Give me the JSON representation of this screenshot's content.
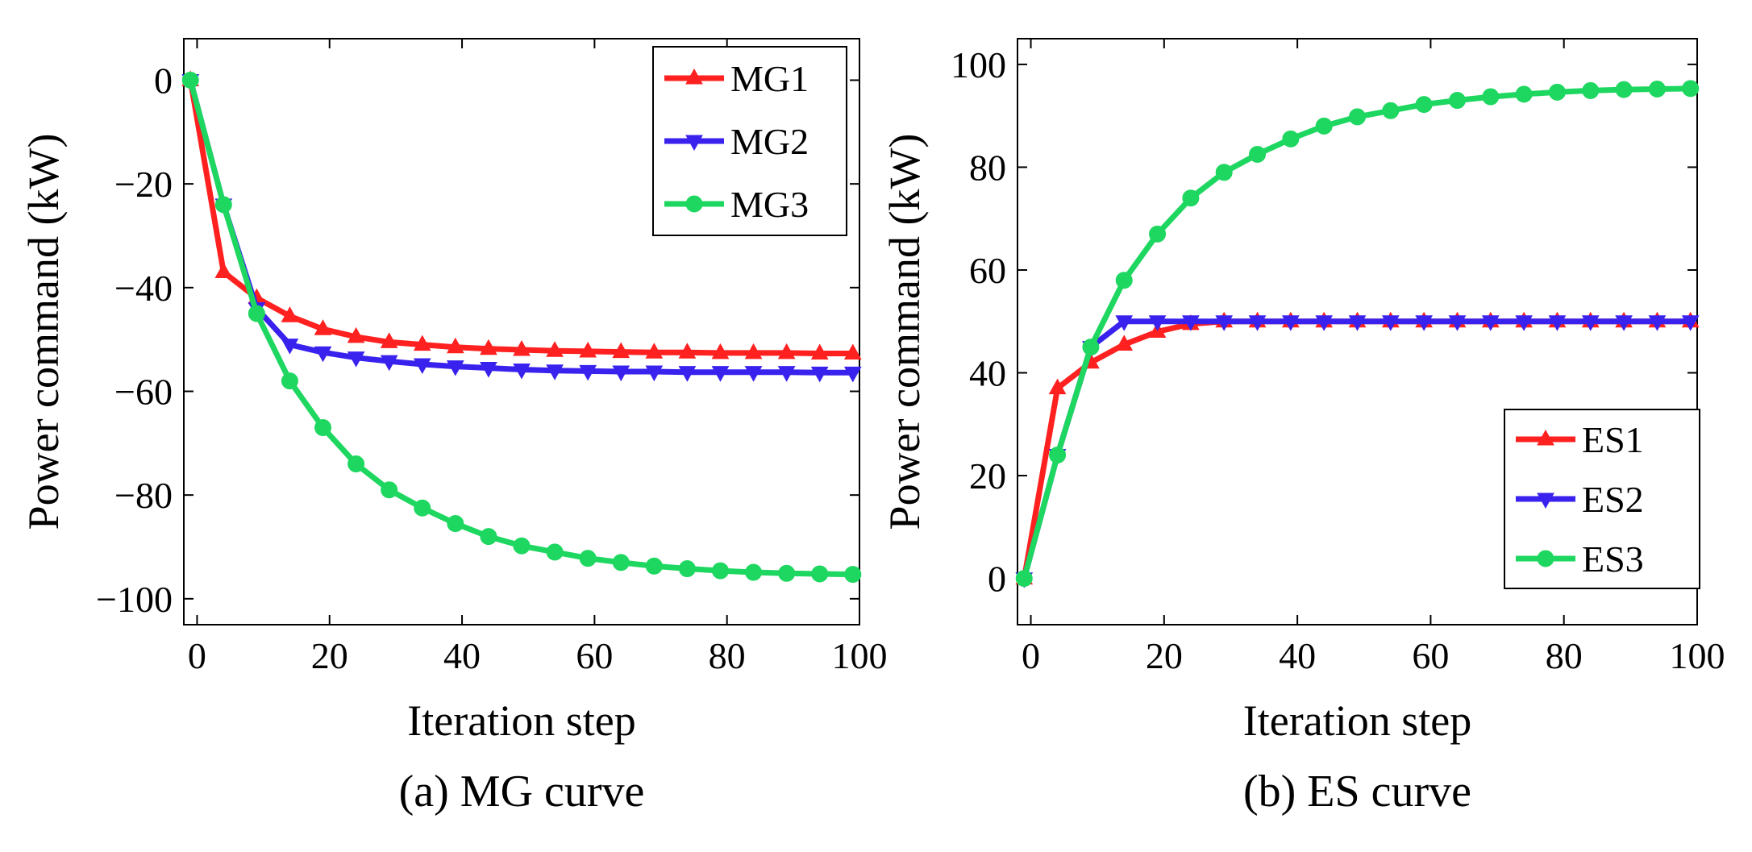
{
  "chart_data": [
    {
      "type": "line",
      "title": "",
      "caption": "(a) MG curve",
      "xlabel": "Iteration step",
      "ylabel": "Power command (kW)",
      "xlim": [
        -2,
        100
      ],
      "ylim": [
        -105,
        8
      ],
      "xticks": [
        0,
        20,
        40,
        60,
        80,
        100
      ],
      "yticks": [
        0,
        -20,
        -40,
        -60,
        -80,
        -100
      ],
      "xtick_labels": [
        "0",
        "20",
        "40",
        "60",
        "80",
        "100"
      ],
      "ytick_labels": [
        "0",
        "−20",
        "−40",
        "−60",
        "−80",
        "−100"
      ],
      "legend_position": "top-right",
      "x": [
        -1,
        4,
        9,
        14,
        19,
        24,
        29,
        34,
        39,
        44,
        49,
        54,
        59,
        64,
        69,
        74,
        79,
        84,
        89,
        94,
        99
      ],
      "series": [
        {
          "name": "MG1",
          "color": "#ff2020",
          "marker": "triangle-up",
          "values": [
            0,
            -37,
            -42,
            -45.5,
            -48,
            -49.5,
            -50.5,
            -51,
            -51.5,
            -51.8,
            -52,
            -52.2,
            -52.3,
            -52.4,
            -52.5,
            -52.5,
            -52.6,
            -52.6,
            -52.6,
            -52.7,
            -52.7
          ]
        },
        {
          "name": "MG2",
          "color": "#3a22ee",
          "marker": "triangle-down",
          "values": [
            0,
            -24,
            -44,
            -51,
            -52.5,
            -53.5,
            -54.2,
            -54.8,
            -55.2,
            -55.5,
            -55.8,
            -56,
            -56.1,
            -56.2,
            -56.2,
            -56.3,
            -56.3,
            -56.3,
            -56.3,
            -56.4,
            -56.4
          ]
        },
        {
          "name": "MG3",
          "color": "#1ed760",
          "marker": "circle",
          "values": [
            0,
            -24,
            -45,
            -58,
            -67,
            -74,
            -79,
            -82.5,
            -85.5,
            -88,
            -89.8,
            -91,
            -92.2,
            -93,
            -93.7,
            -94.2,
            -94.6,
            -94.9,
            -95.1,
            -95.2,
            -95.3
          ]
        }
      ]
    },
    {
      "type": "line",
      "title": "",
      "caption": "(b) ES curve",
      "xlabel": "Iteration step",
      "ylabel": "Power command (kW)",
      "xlim": [
        -2,
        100
      ],
      "ylim": [
        -9,
        105
      ],
      "xticks": [
        0,
        20,
        40,
        60,
        80,
        100
      ],
      "yticks": [
        0,
        20,
        40,
        60,
        80,
        100
      ],
      "xtick_labels": [
        "0",
        "20",
        "40",
        "60",
        "80",
        "100"
      ],
      "ytick_labels": [
        "0",
        "20",
        "40",
        "60",
        "80",
        "100"
      ],
      "legend_position": "bottom-right",
      "x": [
        -1,
        4,
        9,
        14,
        19,
        24,
        29,
        34,
        39,
        44,
        49,
        54,
        59,
        64,
        69,
        74,
        79,
        84,
        89,
        94,
        99
      ],
      "series": [
        {
          "name": "ES1",
          "color": "#ff2020",
          "marker": "triangle-up",
          "values": [
            0,
            37,
            42,
            45.5,
            48,
            49.5,
            50,
            50,
            50,
            50,
            50,
            50,
            50,
            50,
            50,
            50,
            50,
            50,
            50,
            50,
            50
          ]
        },
        {
          "name": "ES2",
          "color": "#3a22ee",
          "marker": "triangle-down",
          "values": [
            0,
            24,
            45,
            50,
            50,
            50,
            50,
            50,
            50,
            50,
            50,
            50,
            50,
            50,
            50,
            50,
            50,
            50,
            50,
            50,
            50
          ]
        },
        {
          "name": "ES3",
          "color": "#1ed760",
          "marker": "circle",
          "values": [
            0,
            24,
            45,
            58,
            67,
            74,
            79,
            82.5,
            85.5,
            88,
            89.8,
            91,
            92.2,
            93,
            93.7,
            94.2,
            94.6,
            94.9,
            95.1,
            95.2,
            95.3
          ]
        }
      ]
    }
  ]
}
